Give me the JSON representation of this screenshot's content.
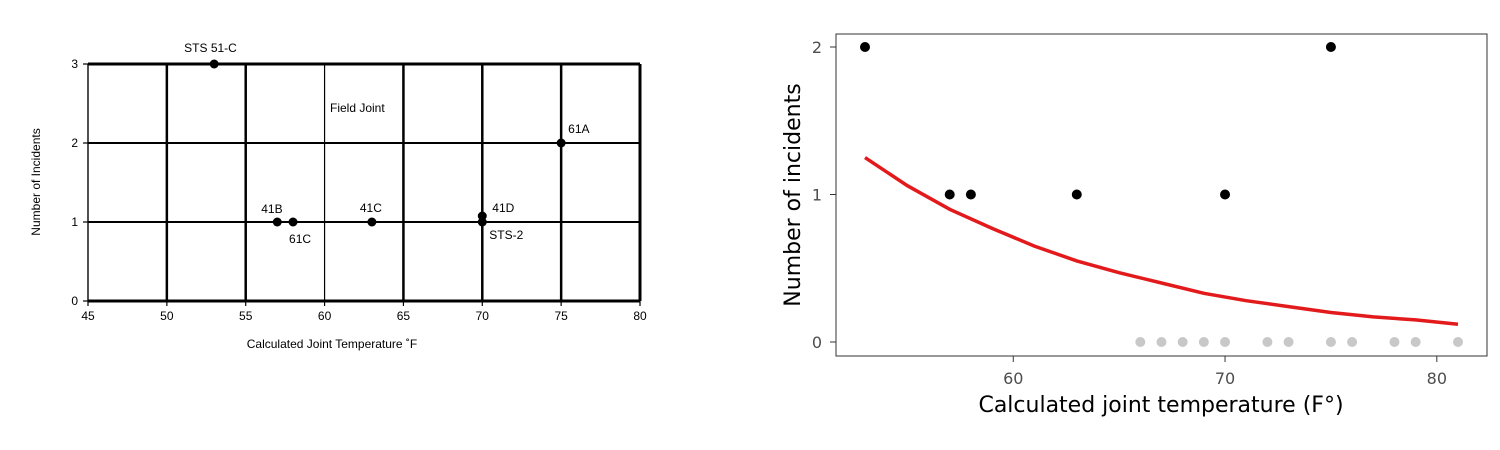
{
  "chart_data": [
    {
      "type": "scatter",
      "title": "",
      "xlabel": "Calculated Joint Temperature ˚F",
      "ylabel": "Number of Incidents",
      "xlim": [
        45,
        80
      ],
      "ylim": [
        0,
        3
      ],
      "xticks": [
        "45",
        "50",
        "55",
        "60",
        "65",
        "70",
        "75",
        "80"
      ],
      "yticks": [
        "0",
        "1",
        "2",
        "3"
      ],
      "annotation": "Field  Joint",
      "grid": true,
      "points": [
        {
          "x": 53,
          "y": 3,
          "label": "STS 51-C"
        },
        {
          "x": 57,
          "y": 1,
          "label": "41B"
        },
        {
          "x": 58,
          "y": 1,
          "label": "61C"
        },
        {
          "x": 63,
          "y": 1,
          "label": "41C"
        },
        {
          "x": 70,
          "y": 1,
          "label": "41D"
        },
        {
          "x": 70,
          "y": 1,
          "label": "STS-2"
        },
        {
          "x": 75,
          "y": 2,
          "label": "61A"
        }
      ]
    },
    {
      "type": "scatter",
      "title": "",
      "xlabel": "Calculated joint temperature (F°)",
      "ylabel": "Number of incidents",
      "xlim": [
        52,
        81.7
      ],
      "ylim": [
        0,
        2
      ],
      "xticks": [
        "60",
        "70",
        "80"
      ],
      "yticks": [
        "0",
        "1",
        "2"
      ],
      "grid": false,
      "incident_points": [
        {
          "x": 53,
          "y": 2
        },
        {
          "x": 57,
          "y": 1
        },
        {
          "x": 58,
          "y": 1
        },
        {
          "x": 63,
          "y": 1
        },
        {
          "x": 70,
          "y": 1
        },
        {
          "x": 75,
          "y": 2
        }
      ],
      "zero_incident_points": [
        66,
        67,
        68,
        69,
        70,
        72,
        73,
        75,
        76,
        78,
        79,
        81
      ],
      "fit_curve": {
        "x": [
          53,
          55,
          57,
          59,
          61,
          63,
          65,
          67,
          69,
          71,
          73,
          75,
          77,
          79,
          81
        ],
        "y": [
          1.25,
          1.06,
          0.9,
          0.77,
          0.65,
          0.55,
          0.47,
          0.4,
          0.33,
          0.28,
          0.24,
          0.2,
          0.17,
          0.15,
          0.12
        ]
      },
      "colors": {
        "incident": "#000000",
        "zero": "#c8c8c8",
        "fit": "#e31a1c"
      }
    }
  ]
}
